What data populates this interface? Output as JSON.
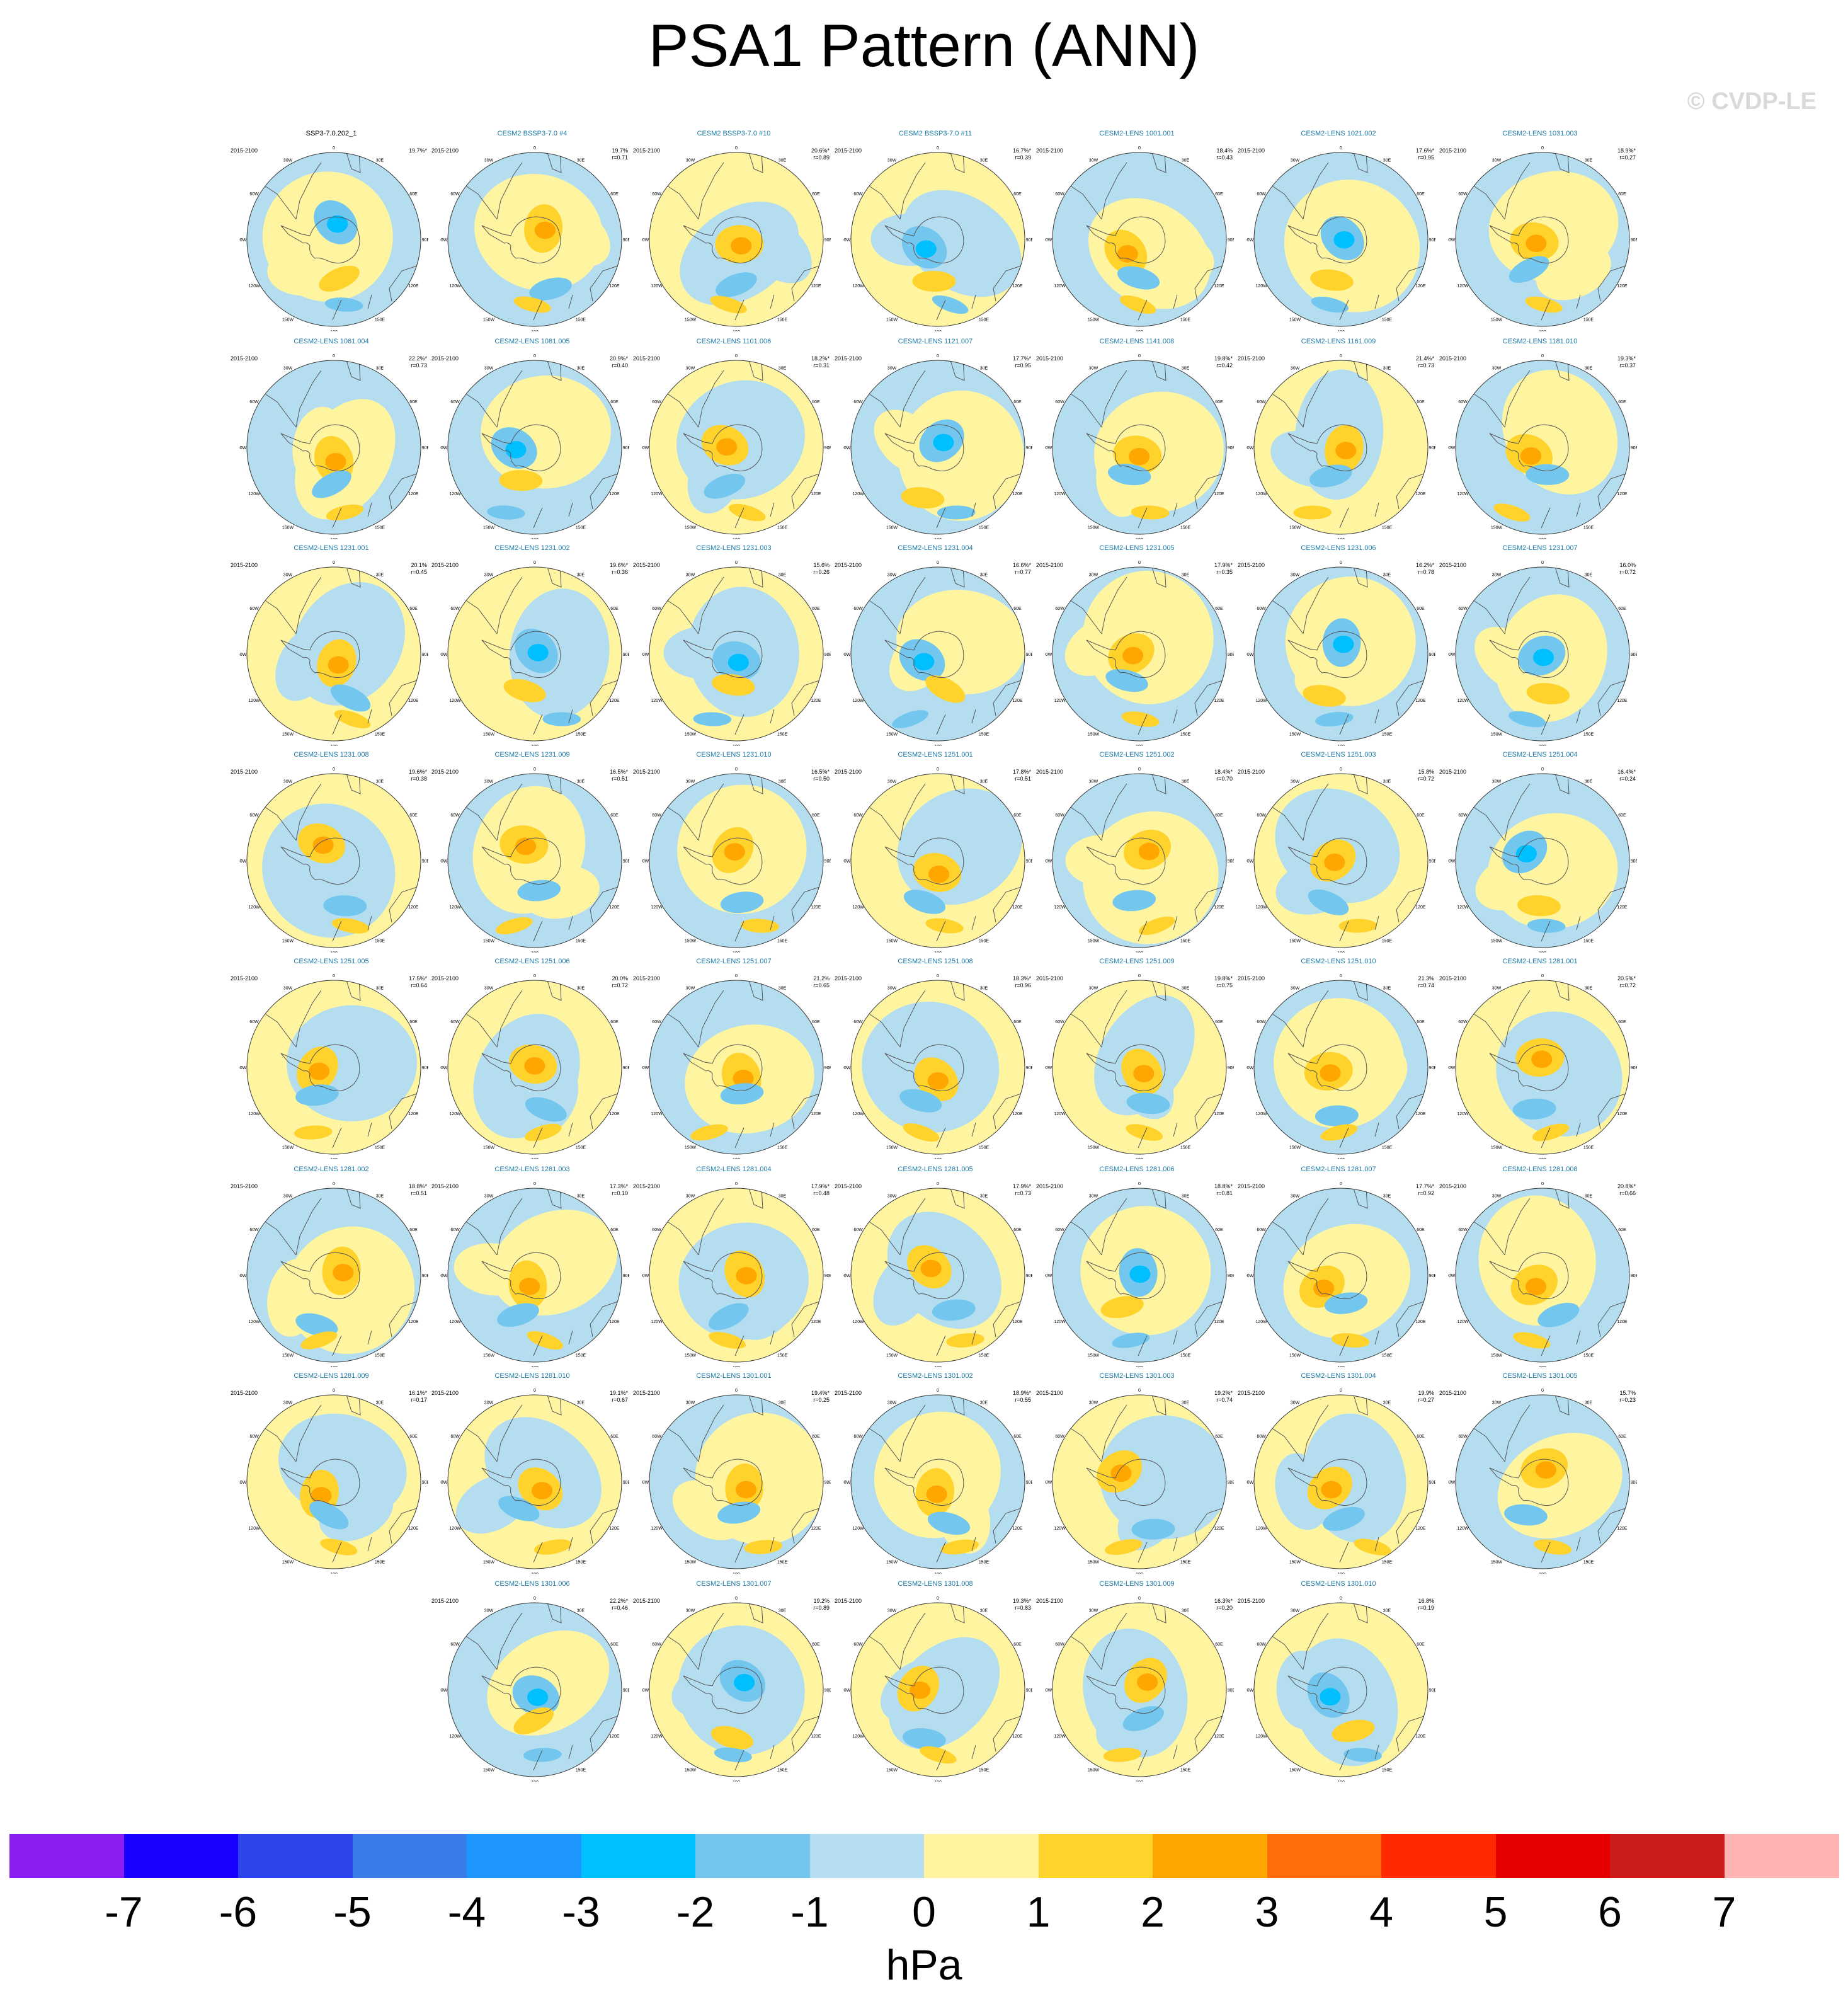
{
  "title": "PSA1 Pattern (ANN)",
  "watermark": "© CVDP-LE",
  "period": "2015-2100",
  "map_labels": {
    "lon_0": "0",
    "lon_30w": "30W",
    "lon_30e": "30E",
    "lon_60w": "60W",
    "lon_60e": "60E",
    "lon_90w": "90W",
    "lon_90e": "90E",
    "lon_120w": "120W",
    "lon_120e": "120E",
    "lon_150w": "150W",
    "lon_150e": "150E",
    "lon_180": "180"
  },
  "colors": {
    "title_obs": "#000000",
    "title_model": "#1a7aa8"
  },
  "panels": [
    {
      "name": "SSP3-7.0.202_1",
      "pct": "19.7%*",
      "r": ""
    },
    {
      "name": "CESM2 BSSP3-7.0 #4",
      "pct": "19.7%",
      "r": "r=0.71"
    },
    {
      "name": "CESM2 BSSP3-7.0 #10",
      "pct": "20.6%*",
      "r": "r=0.89"
    },
    {
      "name": "CESM2 BSSP3-7.0 #11",
      "pct": "16.7%*",
      "r": "r=0.39"
    },
    {
      "name": "CESM2-LENS 1001.001",
      "pct": "18.4%",
      "r": "r=0.43"
    },
    {
      "name": "CESM2-LENS 1021.002",
      "pct": "17.6%*",
      "r": "r=0.95"
    },
    {
      "name": "CESM2-LENS 1031.003",
      "pct": "18.9%*",
      "r": "r=0.27"
    },
    {
      "name": "CESM2-LENS 1061.004",
      "pct": "22.2%*",
      "r": "r=0.73"
    },
    {
      "name": "CESM2-LENS 1081.005",
      "pct": "20.9%*",
      "r": "r=0.40"
    },
    {
      "name": "CESM2-LENS 1101.006",
      "pct": "18.2%*",
      "r": "r=0.31"
    },
    {
      "name": "CESM2-LENS 1121.007",
      "pct": "17.7%*",
      "r": "r=0.95"
    },
    {
      "name": "CESM2-LENS 1141.008",
      "pct": "19.8%*",
      "r": "r=0.42"
    },
    {
      "name": "CESM2-LENS 1161.009",
      "pct": "21.4%*",
      "r": "r=0.73"
    },
    {
      "name": "CESM2-LENS 1181.010",
      "pct": "19.3%*",
      "r": "r=0.37"
    },
    {
      "name": "CESM2-LENS 1231.001",
      "pct": "20.1%",
      "r": "r=0.45"
    },
    {
      "name": "CESM2-LENS 1231.002",
      "pct": "19.6%*",
      "r": "r=0.36"
    },
    {
      "name": "CESM2-LENS 1231.003",
      "pct": "15.6%",
      "r": "r=0.26"
    },
    {
      "name": "CESM2-LENS 1231.004",
      "pct": "16.6%*",
      "r": "r=0.77"
    },
    {
      "name": "CESM2-LENS 1231.005",
      "pct": "17.9%*",
      "r": "r=0.35"
    },
    {
      "name": "CESM2-LENS 1231.006",
      "pct": "16.2%*",
      "r": "r=0.78"
    },
    {
      "name": "CESM2-LENS 1231.007",
      "pct": "16.0%",
      "r": "r=0.72"
    },
    {
      "name": "CESM2-LENS 1231.008",
      "pct": "19.6%*",
      "r": "r=0.38"
    },
    {
      "name": "CESM2-LENS 1231.009",
      "pct": "16.5%*",
      "r": "r=0.51"
    },
    {
      "name": "CESM2-LENS 1231.010",
      "pct": "16.5%*",
      "r": "r=0.50"
    },
    {
      "name": "CESM2-LENS 1251.001",
      "pct": "17.8%*",
      "r": "r=0.51"
    },
    {
      "name": "CESM2-LENS 1251.002",
      "pct": "18.4%*",
      "r": "r=0.70"
    },
    {
      "name": "CESM2-LENS 1251.003",
      "pct": "15.8%",
      "r": "r=0.72"
    },
    {
      "name": "CESM2-LENS 1251.004",
      "pct": "16.4%*",
      "r": "r=0.24"
    },
    {
      "name": "CESM2-LENS 1251.005",
      "pct": "17.5%*",
      "r": "r=0.64"
    },
    {
      "name": "CESM2-LENS 1251.006",
      "pct": "20.0%",
      "r": "r=0.72"
    },
    {
      "name": "CESM2-LENS 1251.007",
      "pct": "21.2%",
      "r": "r=0.65"
    },
    {
      "name": "CESM2-LENS 1251.008",
      "pct": "18.3%*",
      "r": "r=0.96"
    },
    {
      "name": "CESM2-LENS 1251.009",
      "pct": "19.8%*",
      "r": "r=0.75"
    },
    {
      "name": "CESM2-LENS 1251.010",
      "pct": "21.3%",
      "r": "r=0.74"
    },
    {
      "name": "CESM2-LENS 1281.001",
      "pct": "20.5%*",
      "r": "r=0.72"
    },
    {
      "name": "CESM2-LENS 1281.002",
      "pct": "18.8%*",
      "r": "r=0.51"
    },
    {
      "name": "CESM2-LENS 1281.003",
      "pct": "17.3%*",
      "r": "r=0.10"
    },
    {
      "name": "CESM2-LENS 1281.004",
      "pct": "17.9%*",
      "r": "r=0.48"
    },
    {
      "name": "CESM2-LENS 1281.005",
      "pct": "17.9%*",
      "r": "r=0.73"
    },
    {
      "name": "CESM2-LENS 1281.006",
      "pct": "18.8%*",
      "r": "r=0.81"
    },
    {
      "name": "CESM2-LENS 1281.007",
      "pct": "17.7%*",
      "r": "r=0.92"
    },
    {
      "name": "CESM2-LENS 1281.008",
      "pct": "20.8%*",
      "r": "r=0.66"
    },
    {
      "name": "CESM2-LENS 1281.009",
      "pct": "16.1%*",
      "r": "r=0.17"
    },
    {
      "name": "CESM2-LENS 1281.010",
      "pct": "19.1%*",
      "r": "r=0.67"
    },
    {
      "name": "CESM2-LENS 1301.001",
      "pct": "19.4%*",
      "r": "r=0.25"
    },
    {
      "name": "CESM2-LENS 1301.002",
      "pct": "18.9%*",
      "r": "r=0.55"
    },
    {
      "name": "CESM2-LENS 1301.003",
      "pct": "19.2%*",
      "r": "r=0.74"
    },
    {
      "name": "CESM2-LENS 1301.004",
      "pct": "19.9%",
      "r": "r=0.27"
    },
    {
      "name": "CESM2-LENS 1301.005",
      "pct": "15.7%",
      "r": "r=0.23"
    },
    {
      "name": "CESM2-LENS 1301.006",
      "pct": "22.2%*",
      "r": "r=0.46"
    },
    {
      "name": "CESM2-LENS 1301.007",
      "pct": "19.2%",
      "r": "r=0.89"
    },
    {
      "name": "CESM2-LENS 1301.008",
      "pct": "19.3%*",
      "r": "r=0.83"
    },
    {
      "name": "CESM2-LENS 1301.009",
      "pct": "16.3%*",
      "r": "r=0.20"
    },
    {
      "name": "CESM2-LENS 1301.010",
      "pct": "16.8%",
      "r": "r=0.19"
    }
  ],
  "colorbar": {
    "colors": [
      "#8b1df2",
      "#1a00ff",
      "#2c44eb",
      "#3a7ce8",
      "#1e96ff",
      "#00bfff",
      "#73c7ef",
      "#b4def0",
      "#fff5a0",
      "#ffd22c",
      "#ffa600",
      "#ff6e0a",
      "#ff2a00",
      "#e60000",
      "#cc1c1c",
      "#ffb3b3"
    ],
    "labels": [
      "-7",
      "-6",
      "-5",
      "-4",
      "-3",
      "-2",
      "-1",
      "0",
      "1",
      "2",
      "3",
      "4",
      "5",
      "6",
      "7"
    ],
    "units": "hPa"
  }
}
